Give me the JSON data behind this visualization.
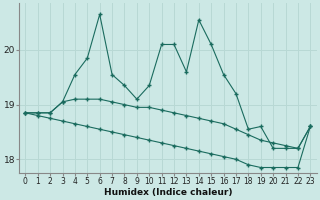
{
  "xlabel": "Humidex (Indice chaleur)",
  "background_color": "#cce8e5",
  "line_color": "#1a6b5e",
  "grid_color": "#b8d8d4",
  "xlim": [
    -0.5,
    23.5
  ],
  "ylim": [
    17.75,
    20.85
  ],
  "yticks": [
    18,
    19,
    20
  ],
  "xticks": [
    0,
    1,
    2,
    3,
    4,
    5,
    6,
    7,
    8,
    9,
    10,
    11,
    12,
    13,
    14,
    15,
    16,
    17,
    18,
    19,
    20,
    21,
    22,
    23
  ],
  "line1_x": [
    0,
    1,
    2,
    3,
    4,
    5,
    6,
    7,
    8,
    9,
    10,
    11,
    12,
    13,
    14,
    15,
    16,
    17,
    18,
    19,
    20,
    21,
    22,
    23
  ],
  "line1_y": [
    18.85,
    18.85,
    18.85,
    19.05,
    19.55,
    19.85,
    20.65,
    19.55,
    19.35,
    19.1,
    19.35,
    20.1,
    20.1,
    19.6,
    20.55,
    20.1,
    19.55,
    19.2,
    18.55,
    18.6,
    18.2,
    18.2,
    18.2,
    18.6
  ],
  "line2_x": [
    0,
    1,
    2,
    3,
    4,
    5,
    6,
    7,
    8,
    9,
    10,
    11,
    12,
    13,
    14,
    15,
    16,
    17,
    18,
    19,
    20,
    21,
    22,
    23
  ],
  "line2_y": [
    18.85,
    18.85,
    18.85,
    19.05,
    19.1,
    19.1,
    19.1,
    19.05,
    19.0,
    18.95,
    18.95,
    18.9,
    18.85,
    18.8,
    18.75,
    18.7,
    18.65,
    18.55,
    18.45,
    18.35,
    18.3,
    18.25,
    18.2,
    18.6
  ],
  "line3_x": [
    0,
    1,
    2,
    3,
    4,
    5,
    6,
    7,
    8,
    9,
    10,
    11,
    12,
    13,
    14,
    15,
    16,
    17,
    18,
    19,
    20,
    21,
    22,
    23
  ],
  "line3_y": [
    18.85,
    18.8,
    18.75,
    18.7,
    18.65,
    18.6,
    18.55,
    18.5,
    18.45,
    18.4,
    18.35,
    18.3,
    18.25,
    18.2,
    18.15,
    18.1,
    18.05,
    18.0,
    17.9,
    17.85,
    17.85,
    17.85,
    17.85,
    18.6
  ]
}
